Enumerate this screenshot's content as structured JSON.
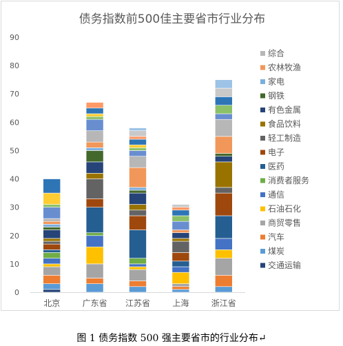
{
  "caption": "图 1 债务指数 500 强主要省市的行业分布↵",
  "chart_data": {
    "type": "bar",
    "stacked": true,
    "title": "债务指数前500佳主要省市行业分布",
    "categories": [
      "北京",
      "广东省",
      "江苏省",
      "上海",
      "浙江省"
    ],
    "ylim": [
      0,
      90
    ],
    "yticks": [
      0,
      10,
      20,
      30,
      40,
      50,
      60,
      70,
      80,
      90
    ],
    "grid": false,
    "legend_position": "right",
    "series": [
      {
        "name": "交通运输",
        "color": "#264478",
        "values": [
          1,
          0,
          0,
          0,
          0
        ]
      },
      {
        "name": "煤炭",
        "color": "#5b9bd5",
        "values": [
          2,
          3,
          2,
          1,
          2
        ]
      },
      {
        "name": "汽车",
        "color": "#ed7d31",
        "values": [
          3,
          2,
          2,
          1,
          4
        ]
      },
      {
        "name": "商贸零售",
        "color": "#a5a5a5",
        "values": [
          3,
          5,
          4,
          1,
          6
        ]
      },
      {
        "name": "石油石化",
        "color": "#ffc000",
        "values": [
          1,
          6,
          1,
          4,
          3
        ]
      },
      {
        "name": "通信",
        "color": "#4472c4",
        "values": [
          2,
          4,
          1,
          2,
          4
        ]
      },
      {
        "name": "消费者服务",
        "color": "#70ad47",
        "values": [
          2,
          1,
          2,
          0,
          0
        ]
      },
      {
        "name": "医药",
        "color": "#255e91",
        "values": [
          1,
          9,
          10,
          2,
          8
        ]
      },
      {
        "name": "电子",
        "color": "#9e480e",
        "values": [
          2,
          3,
          5,
          3,
          8
        ]
      },
      {
        "name": "轻工制造",
        "color": "#636363",
        "values": [
          1,
          7,
          2,
          4,
          2
        ]
      },
      {
        "name": "食品饮料",
        "color": "#997300",
        "values": [
          1,
          2,
          2,
          1,
          9
        ]
      },
      {
        "name": "有色金属",
        "color": "#264478",
        "values": [
          3,
          4,
          4,
          2,
          2
        ]
      },
      {
        "name": "钢铁",
        "color": "#43682b",
        "values": [
          1,
          4,
          1,
          0,
          1
        ]
      },
      {
        "name": "家电",
        "color": "#7cafdd",
        "values": [
          1,
          1,
          1,
          0,
          0
        ]
      },
      {
        "name": "农林牧渔",
        "color": "#f1975a",
        "values": [
          1,
          2,
          7,
          1,
          6
        ]
      },
      {
        "name": "综合",
        "color": "#b7b7b7",
        "values": [
          1,
          4,
          4,
          0,
          6
        ]
      },
      {
        "name": "",
        "color": "#698ed0",
        "values": [
          4,
          4,
          2,
          3,
          2
        ]
      },
      {
        "name": "",
        "color": "#8cc168",
        "values": [
          1,
          1,
          1,
          2,
          3
        ]
      },
      {
        "name": "",
        "color": "#ffcd33",
        "values": [
          4,
          1,
          1,
          0,
          0
        ]
      },
      {
        "name": "",
        "color": "#2e75b6",
        "values": [
          5,
          2,
          2,
          2,
          3
        ]
      },
      {
        "name": "",
        "color": "#ff9966",
        "values": [
          0,
          2,
          1,
          1,
          0
        ]
      },
      {
        "name": "",
        "color": "#c9c9c9",
        "values": [
          0,
          0,
          2,
          1,
          3
        ]
      },
      {
        "name": "",
        "color": "#9dc3e6",
        "values": [
          0,
          0,
          1,
          0,
          3
        ]
      },
      {
        "name": "",
        "color": "#5b9bd5",
        "values": [
          0,
          0,
          0,
          0,
          0
        ]
      }
    ]
  }
}
